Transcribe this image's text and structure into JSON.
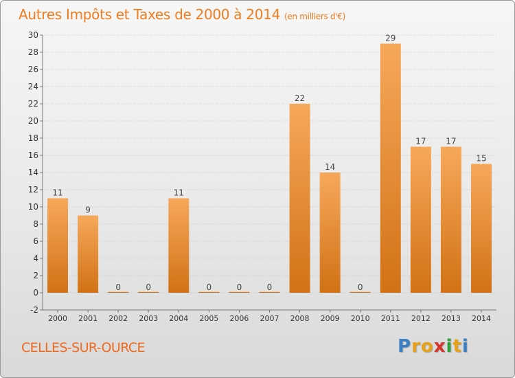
{
  "header": {
    "title": "Autres Impôts et Taxes de 2000 à 2014",
    "unit": "(en milliers d'€)"
  },
  "footer": {
    "commune": "CELLES-SUR-OURCE",
    "logo_letters": [
      "P",
      "r",
      "o",
      "x",
      "i",
      "t",
      "i"
    ],
    "logo_colors": [
      "#3a7fc4",
      "#e8a21a",
      "#e8a21a",
      "#d8352a",
      "#2f9e3a",
      "#e8a21a",
      "#3a7fc4"
    ]
  },
  "colors": {
    "bar_top": "#f6a85a",
    "bar_bottom": "#d27216",
    "title": "#f07c1e",
    "value_label": "#444444",
    "axis_text": "#333333",
    "grid": "#c8c8c8"
  },
  "chart_data": {
    "type": "bar",
    "title": "Autres Impôts et Taxes de 2000 à 2014",
    "subtitle": "(en milliers d'€)",
    "xlabel": "",
    "ylabel": "",
    "categories": [
      "2000",
      "2001",
      "2002",
      "2003",
      "2004",
      "2005",
      "2006",
      "2007",
      "2008",
      "2009",
      "2010",
      "2011",
      "2012",
      "2013",
      "2014"
    ],
    "values": [
      11,
      9,
      0,
      0,
      11,
      0,
      0,
      0,
      22,
      14,
      0,
      29,
      17,
      17,
      15
    ],
    "value_labels": [
      "11",
      "9",
      "0",
      "0",
      "11",
      "0",
      "0",
      "0",
      "22",
      "14",
      "0",
      "29",
      "17",
      "17",
      "15"
    ],
    "yticks": [
      -2,
      0,
      2,
      4,
      6,
      8,
      10,
      12,
      14,
      16,
      18,
      20,
      22,
      24,
      26,
      28,
      30
    ],
    "ylim": [
      -2,
      30
    ],
    "grid": true,
    "legend": "none"
  }
}
